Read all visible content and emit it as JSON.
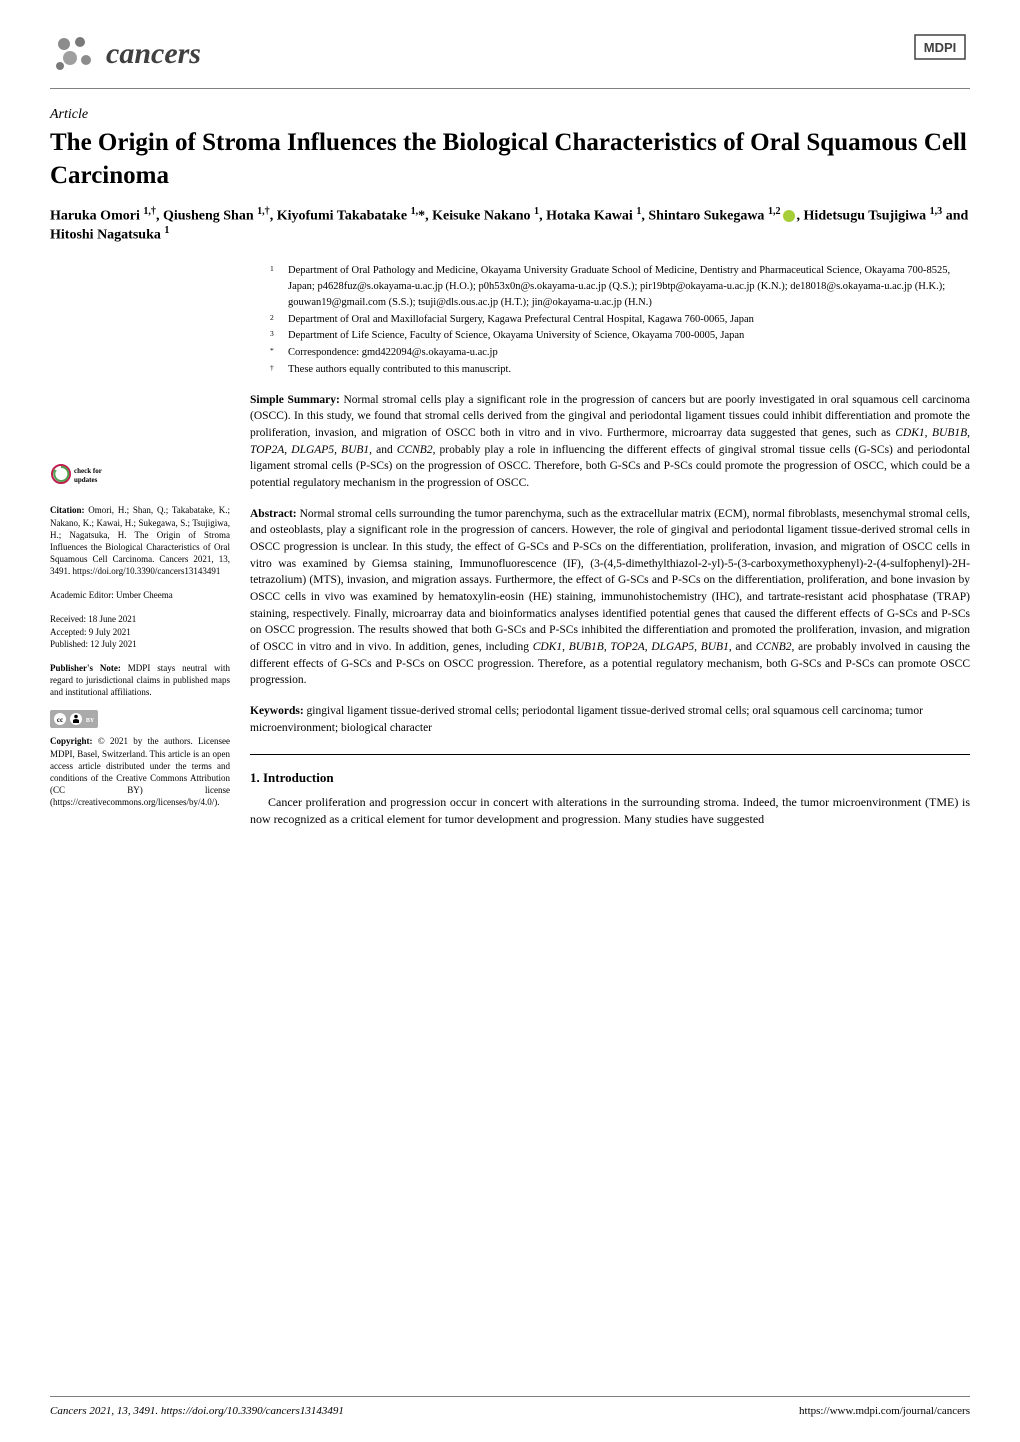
{
  "journal": {
    "name": "cancers",
    "publisher_logo_label": "MDPI"
  },
  "article": {
    "type": "Article",
    "title": "The Origin of Stroma Influences the Biological Characteristics of Oral Squamous Cell Carcinoma",
    "authors_html": "Haruka Omori <sup>1,†</sup>, Qiusheng Shan <sup>1,†</sup>, Kiyofumi Takabatake <sup>1,</sup>*, Keisuke Nakano <sup>1</sup>, Hotaka Kawai <sup>1</sup>, Shintaro Sukegawa <sup>1,2</sup><span class=\"orcid-icon\" data-name=\"orcid-icon\" data-interactable=\"false\"></span>, Hidetsugu Tsujigiwa <sup>1,3</sup> and Hitoshi Nagatsuka <sup>1</sup>"
  },
  "affiliations": [
    {
      "num": "1",
      "text": "Department of Oral Pathology and Medicine, Okayama University Graduate School of Medicine, Dentistry and Pharmaceutical Science, Okayama 700-8525, Japan; p4628fuz@s.okayama-u.ac.jp (H.O.); p0h53x0n@s.okayama-u.ac.jp (Q.S.); pir19btp@okayama-u.ac.jp (K.N.); de18018@s.okayama-u.ac.jp (H.K.); gouwan19@gmail.com (S.S.); tsuji@dls.ous.ac.jp (H.T.); jin@okayama-u.ac.jp (H.N.)"
    },
    {
      "num": "2",
      "text": "Department of Oral and Maxillofacial Surgery, Kagawa Prefectural Central Hospital, Kagawa 760-0065, Japan"
    },
    {
      "num": "3",
      "text": "Department of Life Science, Faculty of Science, Okayama University of Science, Okayama 700-0005, Japan"
    },
    {
      "num": "*",
      "text": "Correspondence: gmd422094@s.okayama-u.ac.jp"
    },
    {
      "num": "†",
      "text": "These authors equally contributed to this manuscript."
    }
  ],
  "simple_summary": {
    "heading": "Simple Summary:",
    "text": " Normal stromal cells play a significant role in the progression of cancers but are poorly investigated in oral squamous cell carcinoma (OSCC). In this study, we found that stromal cells derived from the gingival and periodontal ligament tissues could inhibit differentiation and promote the proliferation, invasion, and migration of OSCC both in vitro and in vivo. Furthermore, microarray data suggested that genes, such as CDK1, BUB1B, TOP2A, DLGAP5, BUB1, and CCNB2, probably play a role in influencing the different effects of gingival stromal tissue cells (G-SCs) and periodontal ligament stromal cells (P-SCs) on the progression of OSCC. Therefore, both G-SCs and P-SCs could promote the progression of OSCC, which could be a potential regulatory mechanism in the progression of OSCC."
  },
  "abstract": {
    "heading": "Abstract:",
    "text": " Normal stromal cells surrounding the tumor parenchyma, such as the extracellular matrix (ECM), normal fibroblasts, mesenchymal stromal cells, and osteoblasts, play a significant role in the progression of cancers. However, the role of gingival and periodontal ligament tissue-derived stromal cells in OSCC progression is unclear. In this study, the effect of G-SCs and P-SCs on the differentiation, proliferation, invasion, and migration of OSCC cells in vitro was examined by Giemsa staining, Immunofluorescence (IF), (3-(4,5-dimethylthiazol-2-yl)-5-(3-carboxymethoxyphenyl)-2-(4-sulfophenyl)-2H-tetrazolium) (MTS), invasion, and migration assays. Furthermore, the effect of G-SCs and P-SCs on the differentiation, proliferation, and bone invasion by OSCC cells in vivo was examined by hematoxylin-eosin (HE) staining, immunohistochemistry (IHC), and tartrate-resistant acid phosphatase (TRAP) staining, respectively. Finally, microarray data and bioinformatics analyses identified potential genes that caused the different effects of G-SCs and P-SCs on OSCC progression. The results showed that both G-SCs and P-SCs inhibited the differentiation and promoted the proliferation, invasion, and migration of OSCC in vitro and in vivo. In addition, genes, including CDK1, BUB1B, TOP2A, DLGAP5, BUB1, and CCNB2, are probably involved in causing the different effects of G-SCs and P-SCs on OSCC progression. Therefore, as a potential regulatory mechanism, both G-SCs and P-SCs can promote OSCC progression."
  },
  "keywords": {
    "heading": "Keywords:",
    "text": " gingival ligament tissue-derived stromal cells; periodontal ligament tissue-derived stromal cells; oral squamous cell carcinoma; tumor microenvironment; biological character"
  },
  "sidebar": {
    "check_updates_label": "check for updates",
    "citation_heading": "Citation:",
    "citation_text": " Omori, H.; Shan, Q.; Takabatake, K.; Nakano, K.; Kawai, H.; Sukegawa, S.; Tsujigiwa, H.; Nagatsuka, H. The Origin of Stroma Influences the Biological Characteristics of Oral Squamous Cell Carcinoma. Cancers 2021, 13, 3491. https://doi.org/10.3390/cancers13143491",
    "editor_heading": "Academic Editor:",
    "editor_text": " Umber Cheema",
    "dates_received": "Received: 18 June 2021",
    "dates_accepted": "Accepted: 9 July 2021",
    "dates_published": "Published: 12 July 2021",
    "publishers_note_heading": "Publisher's Note:",
    "publishers_note_text": " MDPI stays neutral with regard to jurisdictional claims in published maps and institutional affiliations.",
    "copyright_heading": "Copyright:",
    "copyright_text": " © 2021 by the authors. Licensee MDPI, Basel, Switzerland. This article is an open access article distributed under the terms and conditions of the Creative Commons Attribution (CC BY) license (https://creativecommons.org/licenses/by/4.0/)."
  },
  "introduction": {
    "heading": "1. Introduction",
    "text": "Cancer proliferation and progression occur in concert with alterations in the surrounding stroma. Indeed, the tumor microenvironment (TME) is now recognized as a critical element for tumor development and progression. Many studies have suggested"
  },
  "footer": {
    "left": "Cancers 2021, 13, 3491. https://doi.org/10.3390/cancers13143491",
    "right": "https://www.mdpi.com/journal/cancers"
  },
  "colors": {
    "text": "#000000",
    "divider": "#808080",
    "orcid": "#a6ce39",
    "logo_gray": "#404040"
  }
}
